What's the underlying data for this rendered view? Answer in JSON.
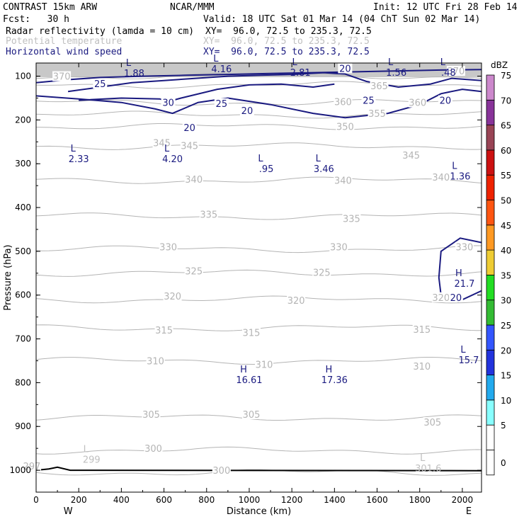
{
  "header": {
    "left1": "CONTRAST 15km ARW",
    "center1": "NCAR/MMM",
    "right1": "Init: 12 UTC Fri 28 Feb 14",
    "left2": "Fcst:   30 h",
    "right2": "Valid: 18 UTC Sat 01 Mar 14 (04 ChT Sun 02 Mar 14)",
    "fields": [
      {
        "name": "Radar reflectivity (lamda = 10 cm)",
        "xy": "XY=  96.0, 72.5 to 235.3, 72.5",
        "color": "#000000"
      },
      {
        "name": "Potential temperature",
        "xy": "XY=  96.0, 72.5 to 235.3, 72.5",
        "color": "#c0c0c0"
      },
      {
        "name": "Horizontal wind speed",
        "xy": "XY=  96.0, 72.5 to 235.3, 72.5",
        "color": "#1a1a80"
      }
    ]
  },
  "chart_data": {
    "type": "contour",
    "xlabel": "Distance (km)",
    "ylabel": "Pressure (hPa)",
    "xlim": [
      0,
      2090
    ],
    "ylim": [
      1050,
      70
    ],
    "x_ticks": [
      0,
      200,
      400,
      600,
      800,
      1000,
      1200,
      1400,
      1600,
      1800,
      2000
    ],
    "y_ticks": [
      100,
      200,
      300,
      400,
      500,
      600,
      700,
      800,
      900,
      1000
    ],
    "x_end_labels": {
      "left": "W",
      "right": "E"
    },
    "colorbar": {
      "unit": "dBZ",
      "levels": [
        0,
        5,
        10,
        15,
        20,
        25,
        30,
        35,
        40,
        45,
        50,
        55,
        60,
        65,
        70,
        75
      ],
      "colors": [
        "#ffffff",
        "#ffffff",
        "#88ffff",
        "#22aaee",
        "#2233dd",
        "#3355ff",
        "#33bb33",
        "#22dd22",
        "#eecc33",
        "#ff9922",
        "#ff5511",
        "#ee2200",
        "#cc1111",
        "#994455",
        "#883399",
        "#cc88cc"
      ]
    },
    "theta_contours": [
      {
        "value": 300,
        "p": 1005,
        "label_x": 870
      },
      {
        "value": 300,
        "p": 955,
        "label_x": 560
      },
      {
        "value": 305,
        "p": 880,
        "label_x": 1010
      },
      {
        "value": 310,
        "p": 750,
        "label_x": 560
      },
      {
        "value": 315,
        "p": 675,
        "label_x": 1010
      },
      {
        "value": 320,
        "p": 610,
        "label_x": 640
      },
      {
        "value": 325,
        "p": 550,
        "label_x": 740
      },
      {
        "value": 330,
        "p": 495,
        "label_x": 620
      },
      {
        "value": 335,
        "p": 420,
        "label_x": 810
      },
      {
        "value": 340,
        "p": 338,
        "label_x": 740
      },
      {
        "value": 345,
        "p": 260,
        "label_x": 600
      },
      {
        "value": 350,
        "p": 215,
        "label_x": 1450
      },
      {
        "value": 355,
        "p": 188,
        "label_x": 1580
      },
      {
        "value": 360,
        "p": 160,
        "label_x": 1800
      },
      {
        "value": 365,
        "p": 120,
        "label_x": 1620
      },
      {
        "value": 370,
        "p": 100,
        "label_x": 120
      }
    ],
    "theta_labels": [
      {
        "text": "297",
        "x": -20,
        "p": 990
      },
      {
        "text": "300",
        "x": 550,
        "p": 950
      },
      {
        "text": "300",
        "x": 870,
        "p": 1000
      },
      {
        "text": "305",
        "x": 540,
        "p": 872
      },
      {
        "text": "305",
        "x": 1010,
        "p": 872
      },
      {
        "text": "305",
        "x": 1860,
        "p": 890
      },
      {
        "text": "310",
        "x": 560,
        "p": 750
      },
      {
        "text": "310",
        "x": 1070,
        "p": 758
      },
      {
        "text": "310",
        "x": 1810,
        "p": 762
      },
      {
        "text": "315",
        "x": 600,
        "p": 680
      },
      {
        "text": "315",
        "x": 1010,
        "p": 685
      },
      {
        "text": "315",
        "x": 1810,
        "p": 678
      },
      {
        "text": "320",
        "x": 640,
        "p": 602
      },
      {
        "text": "320",
        "x": 1220,
        "p": 612
      },
      {
        "text": "320",
        "x": 1900,
        "p": 605
      },
      {
        "text": "325",
        "x": 740,
        "p": 545
      },
      {
        "text": "325",
        "x": 1340,
        "p": 548
      },
      {
        "text": "330",
        "x": 620,
        "p": 490
      },
      {
        "text": "330",
        "x": 1420,
        "p": 490
      },
      {
        "text": "330",
        "x": 2010,
        "p": 490
      },
      {
        "text": "335",
        "x": 810,
        "p": 415
      },
      {
        "text": "335",
        "x": 1480,
        "p": 425
      },
      {
        "text": "340",
        "x": 740,
        "p": 335
      },
      {
        "text": "340",
        "x": 1440,
        "p": 338
      },
      {
        "text": "340",
        "x": 1900,
        "p": 330
      },
      {
        "text": "345",
        "x": 590,
        "p": 252
      },
      {
        "text": "345",
        "x": 720,
        "p": 258
      },
      {
        "text": "345",
        "x": 1760,
        "p": 280
      },
      {
        "text": "350",
        "x": 1450,
        "p": 215
      },
      {
        "text": "355",
        "x": 1600,
        "p": 185
      },
      {
        "text": "360",
        "x": 1790,
        "p": 160
      },
      {
        "text": "360",
        "x": 1440,
        "p": 158
      },
      {
        "text": "365",
        "x": 1610,
        "p": 122
      },
      {
        "text": "370",
        "x": 120,
        "p": 100
      },
      {
        "text": "370",
        "x": 1970,
        "p": 88
      }
    ],
    "wind_labels": [
      {
        "text": "25",
        "x": 300,
        "p": 117
      },
      {
        "text": "30",
        "x": 620,
        "p": 160
      },
      {
        "text": "25",
        "x": 870,
        "p": 162
      },
      {
        "text": "20",
        "x": 990,
        "p": 178
      },
      {
        "text": "20",
        "x": 720,
        "p": 217
      },
      {
        "text": "20",
        "x": 1450,
        "p": 82
      },
      {
        "text": "25",
        "x": 1560,
        "p": 155
      },
      {
        "text": "20",
        "x": 1920,
        "p": 155
      },
      {
        "text": "20",
        "x": 1970,
        "p": 605
      }
    ],
    "extrema": [
      {
        "type": "L",
        "value": "1.88",
        "x": 460,
        "p": 80,
        "color": "#1a1a80"
      },
      {
        "type": "L",
        "value": "4.16",
        "x": 870,
        "p": 70,
        "color": "#1a1a80"
      },
      {
        "type": "L",
        "value": "2.81",
        "x": 1240,
        "p": 78,
        "color": "#1a1a80"
      },
      {
        "type": "L",
        "value": "1.56",
        "x": 1690,
        "p": 78,
        "color": "#1a1a80"
      },
      {
        "type": "L",
        "value": ".48",
        "x": 1935,
        "p": 78,
        "color": "#1a1a80"
      },
      {
        "type": "L",
        "value": "2.33",
        "x": 200,
        "p": 275,
        "color": "#1a1a80"
      },
      {
        "type": "L",
        "value": "4.20",
        "x": 640,
        "p": 275,
        "color": "#1a1a80"
      },
      {
        "type": "L",
        "value": ".95",
        "x": 1080,
        "p": 298,
        "color": "#1a1a80"
      },
      {
        "type": "L",
        "value": "3.46",
        "x": 1350,
        "p": 298,
        "color": "#1a1a80"
      },
      {
        "type": "L",
        "value": "1.36",
        "x": 1990,
        "p": 315,
        "color": "#1a1a80"
      },
      {
        "type": "H",
        "value": "21.7",
        "x": 2010,
        "p": 560,
        "color": "#1a1a80"
      },
      {
        "type": "L",
        "value": "15.7",
        "x": 2030,
        "p": 735,
        "color": "#1a1a80"
      },
      {
        "type": "H",
        "value": "16.61",
        "x": 1000,
        "p": 780,
        "color": "#1a1a80"
      },
      {
        "type": "H",
        "value": "17.36",
        "x": 1400,
        "p": 780,
        "color": "#1a1a80"
      },
      {
        "type": "L",
        "value": "299",
        "x": 260,
        "p": 962,
        "color": "#c0c0c0"
      },
      {
        "type": "L",
        "value": "301.6",
        "x": 1840,
        "p": 982,
        "color": "#c0c0c0"
      }
    ]
  }
}
